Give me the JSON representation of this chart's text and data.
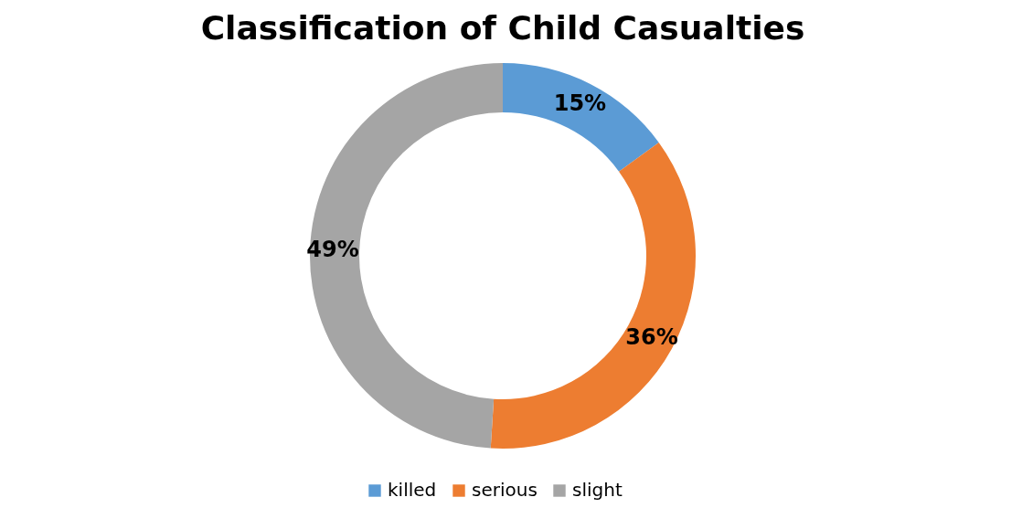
{
  "chart_data": {
    "type": "donut",
    "title": "Classification of Child Casualties",
    "categories": [
      "killed",
      "serious",
      "slight"
    ],
    "values": [
      15,
      36,
      49
    ],
    "colors": [
      "#5b9bd5",
      "#ed7d31",
      "#a5a5a5"
    ],
    "value_labels": [
      "15%",
      "36%",
      "49%"
    ],
    "legend": "bottom"
  }
}
